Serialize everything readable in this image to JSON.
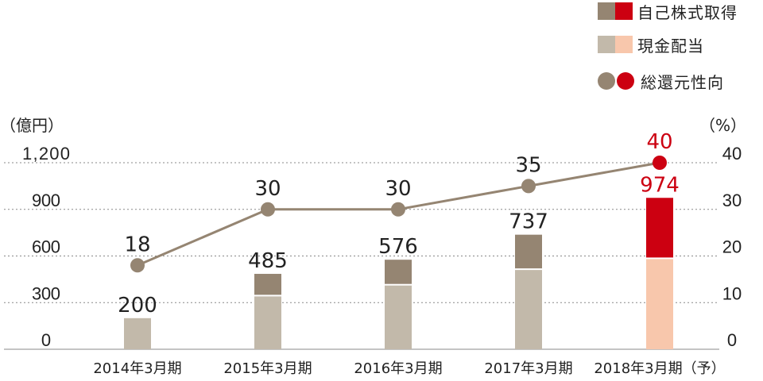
{
  "legend": {
    "buyback": {
      "label": "自己株式取得",
      "colors": [
        "#958572",
        "#cc0011"
      ]
    },
    "dividend": {
      "label": "現金配当",
      "colors": [
        "#c2b9aa",
        "#f8c7ac"
      ]
    },
    "payout": {
      "label": "総還元性向",
      "colors": [
        "#958572",
        "#cc0011"
      ]
    }
  },
  "axis": {
    "left_unit": "（億円）",
    "right_unit": "（%）"
  },
  "chart_data": {
    "type": "bar",
    "categories": [
      "2014年3月期",
      "2015年3月期",
      "2016年3月期",
      "2017年3月期",
      "2018年3月期（予）"
    ],
    "series": [
      {
        "name": "現金配当",
        "values": [
          200,
          340,
          410,
          510,
          580
        ]
      },
      {
        "name": "自己株式取得",
        "values": [
          0,
          145,
          166,
          227,
          394
        ]
      },
      {
        "name": "総還元性向",
        "axis": "right",
        "type": "line",
        "values": [
          18,
          30,
          30,
          35,
          40
        ]
      }
    ],
    "totals": [
      "200",
      "485",
      "576",
      "737",
      "974"
    ],
    "payout_labels": [
      "18",
      "30",
      "30",
      "35",
      "40"
    ],
    "ylim": [
      0,
      1200
    ],
    "yticks": [
      "0",
      "300",
      "600",
      "900",
      "1,200"
    ],
    "y2lim": [
      0,
      40
    ],
    "y2ticks": [
      "0",
      "10",
      "20",
      "30",
      "40"
    ],
    "forecast_index": 4,
    "colors": {
      "dividend": "#c2b9aa",
      "buyback": "#958572",
      "line": "#958572",
      "dividend_forecast": "#f8c7ac",
      "buyback_forecast": "#cc0011",
      "forecast_text": "#cc0011"
    }
  }
}
